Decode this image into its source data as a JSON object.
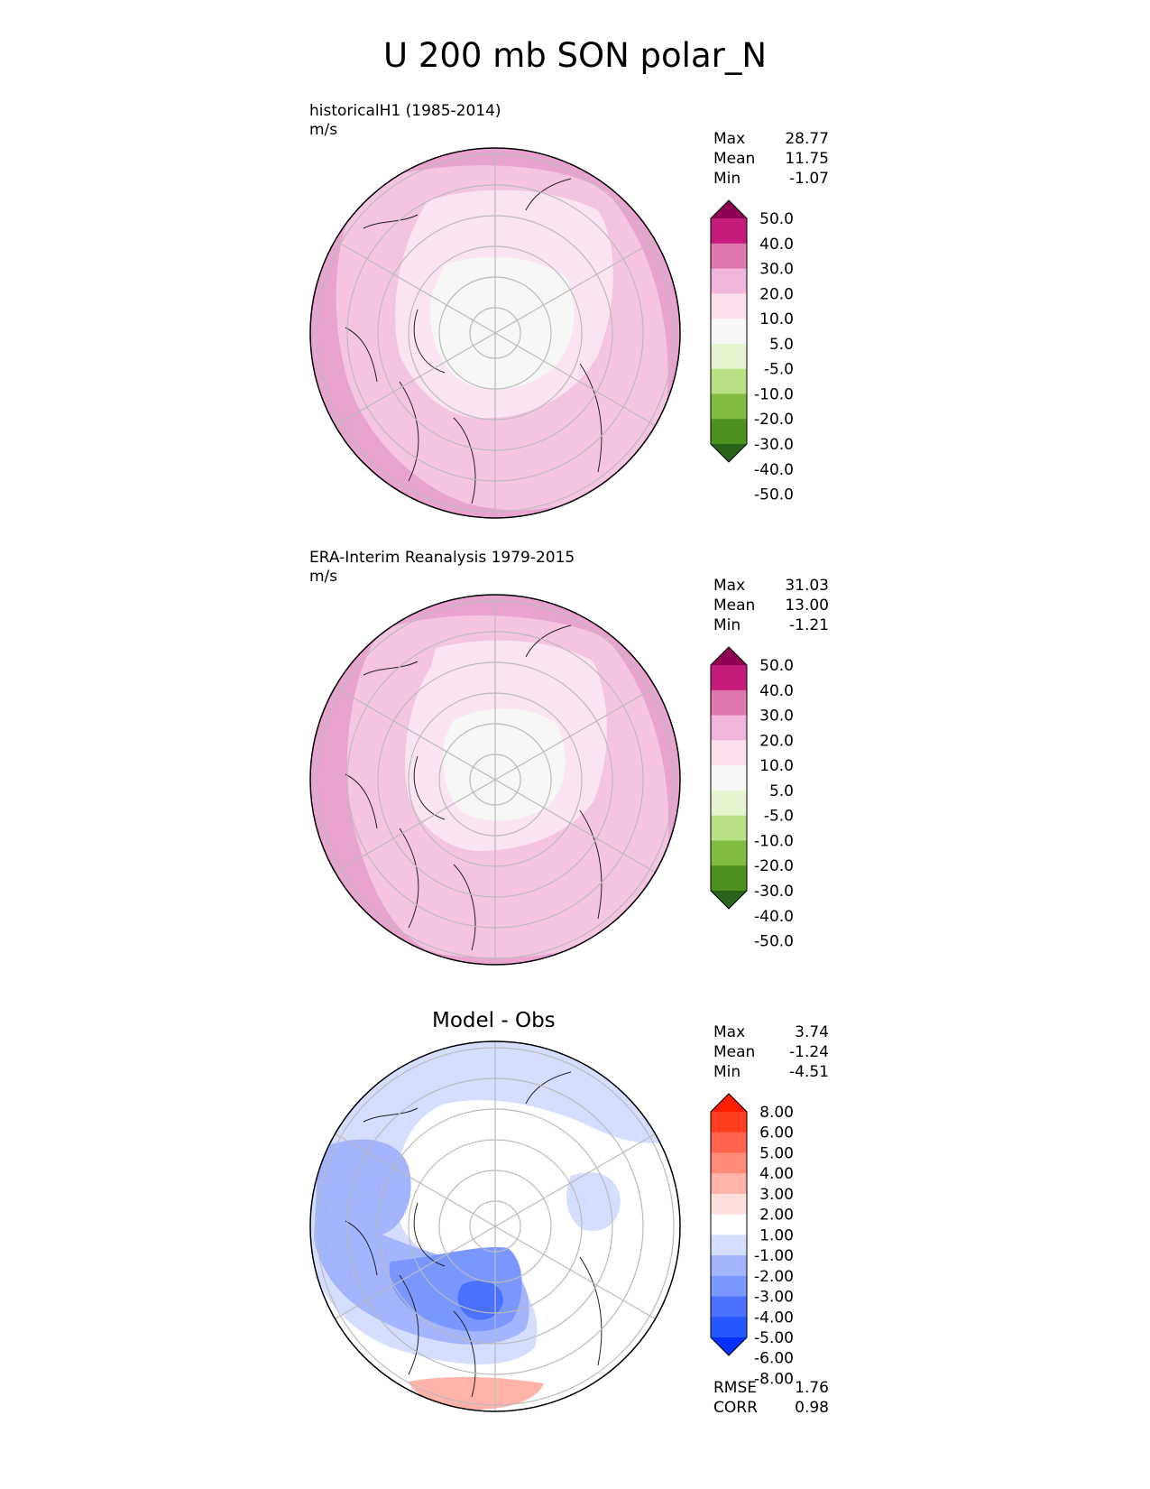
{
  "title": "U 200 mb SON polar_N",
  "palettes": {
    "wind": [
      "#276419",
      "#4d9221",
      "#7fbc41",
      "#b8e186",
      "#e6f5d0",
      "#f7f7f7",
      "#fde0ef",
      "#f1b6da",
      "#de77ae",
      "#c51b7d",
      "#8e0152"
    ],
    "diff": [
      "#0031ff",
      "#2656ff",
      "#4b72ff",
      "#7a97ff",
      "#a3b5ff",
      "#d6deff",
      "#ffffff",
      "#ffdfdc",
      "#ffb3a9",
      "#ff8a75",
      "#ff634b",
      "#ff3d1f",
      "#ff1f00"
    ]
  },
  "panels": [
    {
      "title_line1": "historicalH1 (1985-2014)",
      "title_line2": "m/s",
      "stats": [
        {
          "label": "Max",
          "value": "28.77"
        },
        {
          "label": "Mean",
          "value": "11.75"
        },
        {
          "label": "Min",
          "value": "-1.07"
        }
      ],
      "colorbar": {
        "palette": "wind",
        "labels": [
          "50.0",
          "40.0",
          "30.0",
          "20.0",
          "10.0",
          "5.0",
          "-5.0",
          "-10.0",
          "-20.0",
          "-30.0",
          "-40.0",
          "-50.0"
        ]
      }
    },
    {
      "title_line1": "ERA-Interim Reanalysis 1979-2015",
      "title_line2": "m/s",
      "stats": [
        {
          "label": "Max",
          "value": "31.03"
        },
        {
          "label": "Mean",
          "value": "13.00"
        },
        {
          "label": "Min",
          "value": "-1.21"
        }
      ],
      "colorbar": {
        "palette": "wind",
        "labels": [
          "50.0",
          "40.0",
          "30.0",
          "20.0",
          "10.0",
          "5.0",
          "-5.0",
          "-10.0",
          "-20.0",
          "-30.0",
          "-40.0",
          "-50.0"
        ]
      }
    },
    {
      "title": "Model - Obs",
      "stats": [
        {
          "label": "Max",
          "value": "3.74"
        },
        {
          "label": "Mean",
          "value": "-1.24"
        },
        {
          "label": "Min",
          "value": "-4.51"
        }
      ],
      "colorbar": {
        "palette": "diff",
        "labels": [
          "8.00",
          "6.00",
          "5.00",
          "4.00",
          "3.00",
          "2.00",
          "1.00",
          "-1.00",
          "-2.00",
          "-3.00",
          "-4.00",
          "-5.00",
          "-6.00",
          "-8.00"
        ]
      },
      "metrics": [
        {
          "label": "RMSE",
          "value": "1.76"
        },
        {
          "label": "CORR",
          "value": "0.98"
        }
      ]
    }
  ]
}
